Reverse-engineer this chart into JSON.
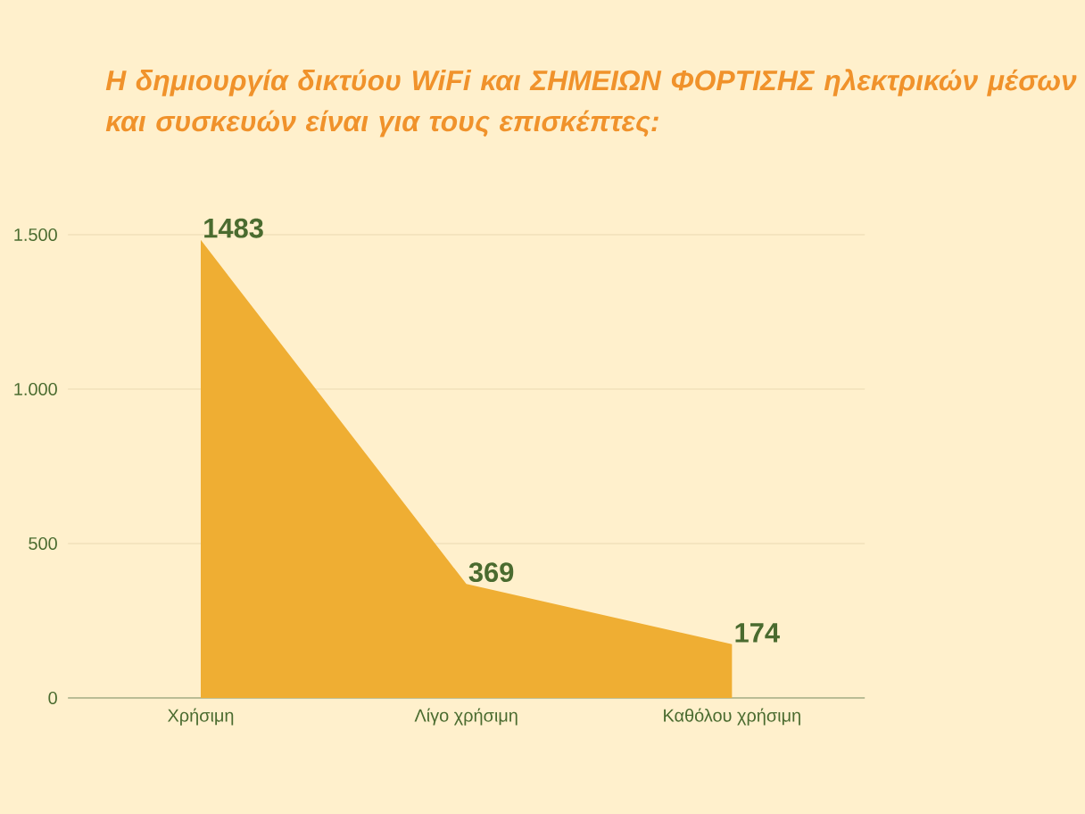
{
  "chart_data": {
    "type": "area",
    "title": "Η δημιουργία δικτύου WiFi και ΣΗΜΕΙΩΝ ΦΟΡΤΙΣΗΣ ηλεκτρικών μέσων και συσκευών είναι για τους επισκέπτες:",
    "categories": [
      "Χρήσιμη",
      "Λίγο χρήσιμη",
      "Καθόλου χρήσιμη"
    ],
    "values": [
      1483,
      369,
      174
    ],
    "color": "#efae33",
    "ylim": [
      0,
      1500
    ],
    "yticks": [
      0,
      500,
      {
        "value": 1000,
        "label": "1.000"
      },
      {
        "value": 1500,
        "label": "1.500"
      }
    ],
    "grid": "y",
    "data_labels": true
  }
}
